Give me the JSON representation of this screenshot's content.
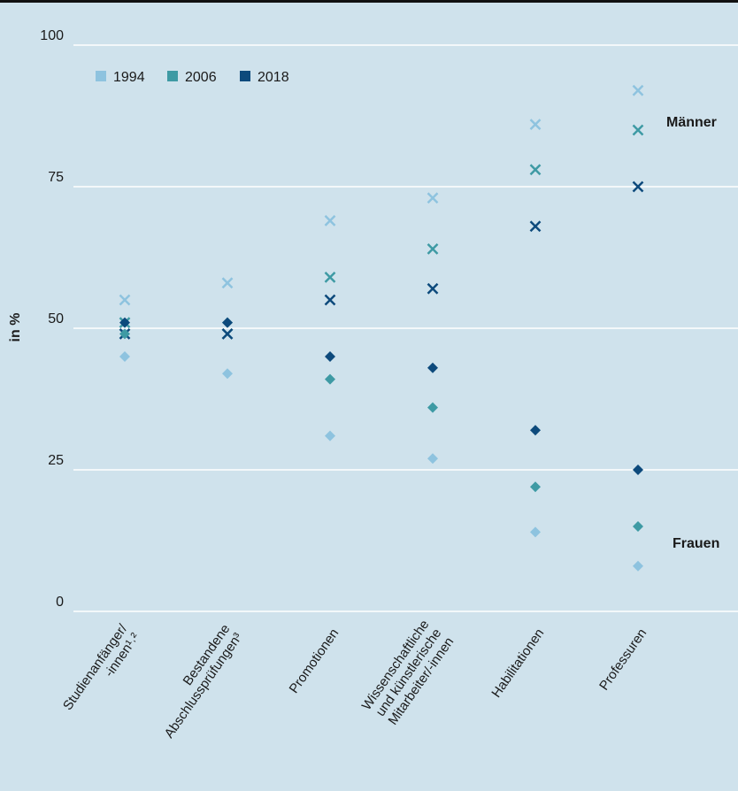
{
  "chart_data": {
    "type": "scatter",
    "ylabel": "in %",
    "ylim": [
      0,
      100
    ],
    "yticks": [
      0,
      25,
      50,
      75,
      100
    ],
    "grid": true,
    "legend_position": "top-left",
    "categories": [
      [
        "Studienanfänger/",
        "-innen¹˒²"
      ],
      [
        "Bestandene",
        "Abschlussprüfungen³"
      ],
      [
        "Promotionen"
      ],
      [
        "Wissenschaftliche",
        "und künstlerische",
        "Mitarbeiter/-innen"
      ],
      [
        "Habilitationen"
      ],
      [
        "Professuren"
      ]
    ],
    "series": [
      {
        "name": "1994",
        "color": "#8ec3df",
        "maenner": [
          55,
          58,
          69,
          73,
          86,
          92
        ],
        "frauen": [
          45,
          42,
          31,
          27,
          14,
          8
        ]
      },
      {
        "name": "2006",
        "color": "#3e9aa4",
        "maenner": [
          51,
          49,
          59,
          64,
          78,
          85
        ],
        "frauen": [
          49,
          51,
          41,
          36,
          22,
          15
        ]
      },
      {
        "name": "2018",
        "color": "#0d4a7c",
        "maenner": [
          49,
          49,
          55,
          57,
          68,
          75
        ],
        "frauen": [
          51,
          51,
          45,
          43,
          32,
          25
        ]
      }
    ],
    "annotations": {
      "maenner": "Männer",
      "frauen": "Frauen"
    }
  }
}
